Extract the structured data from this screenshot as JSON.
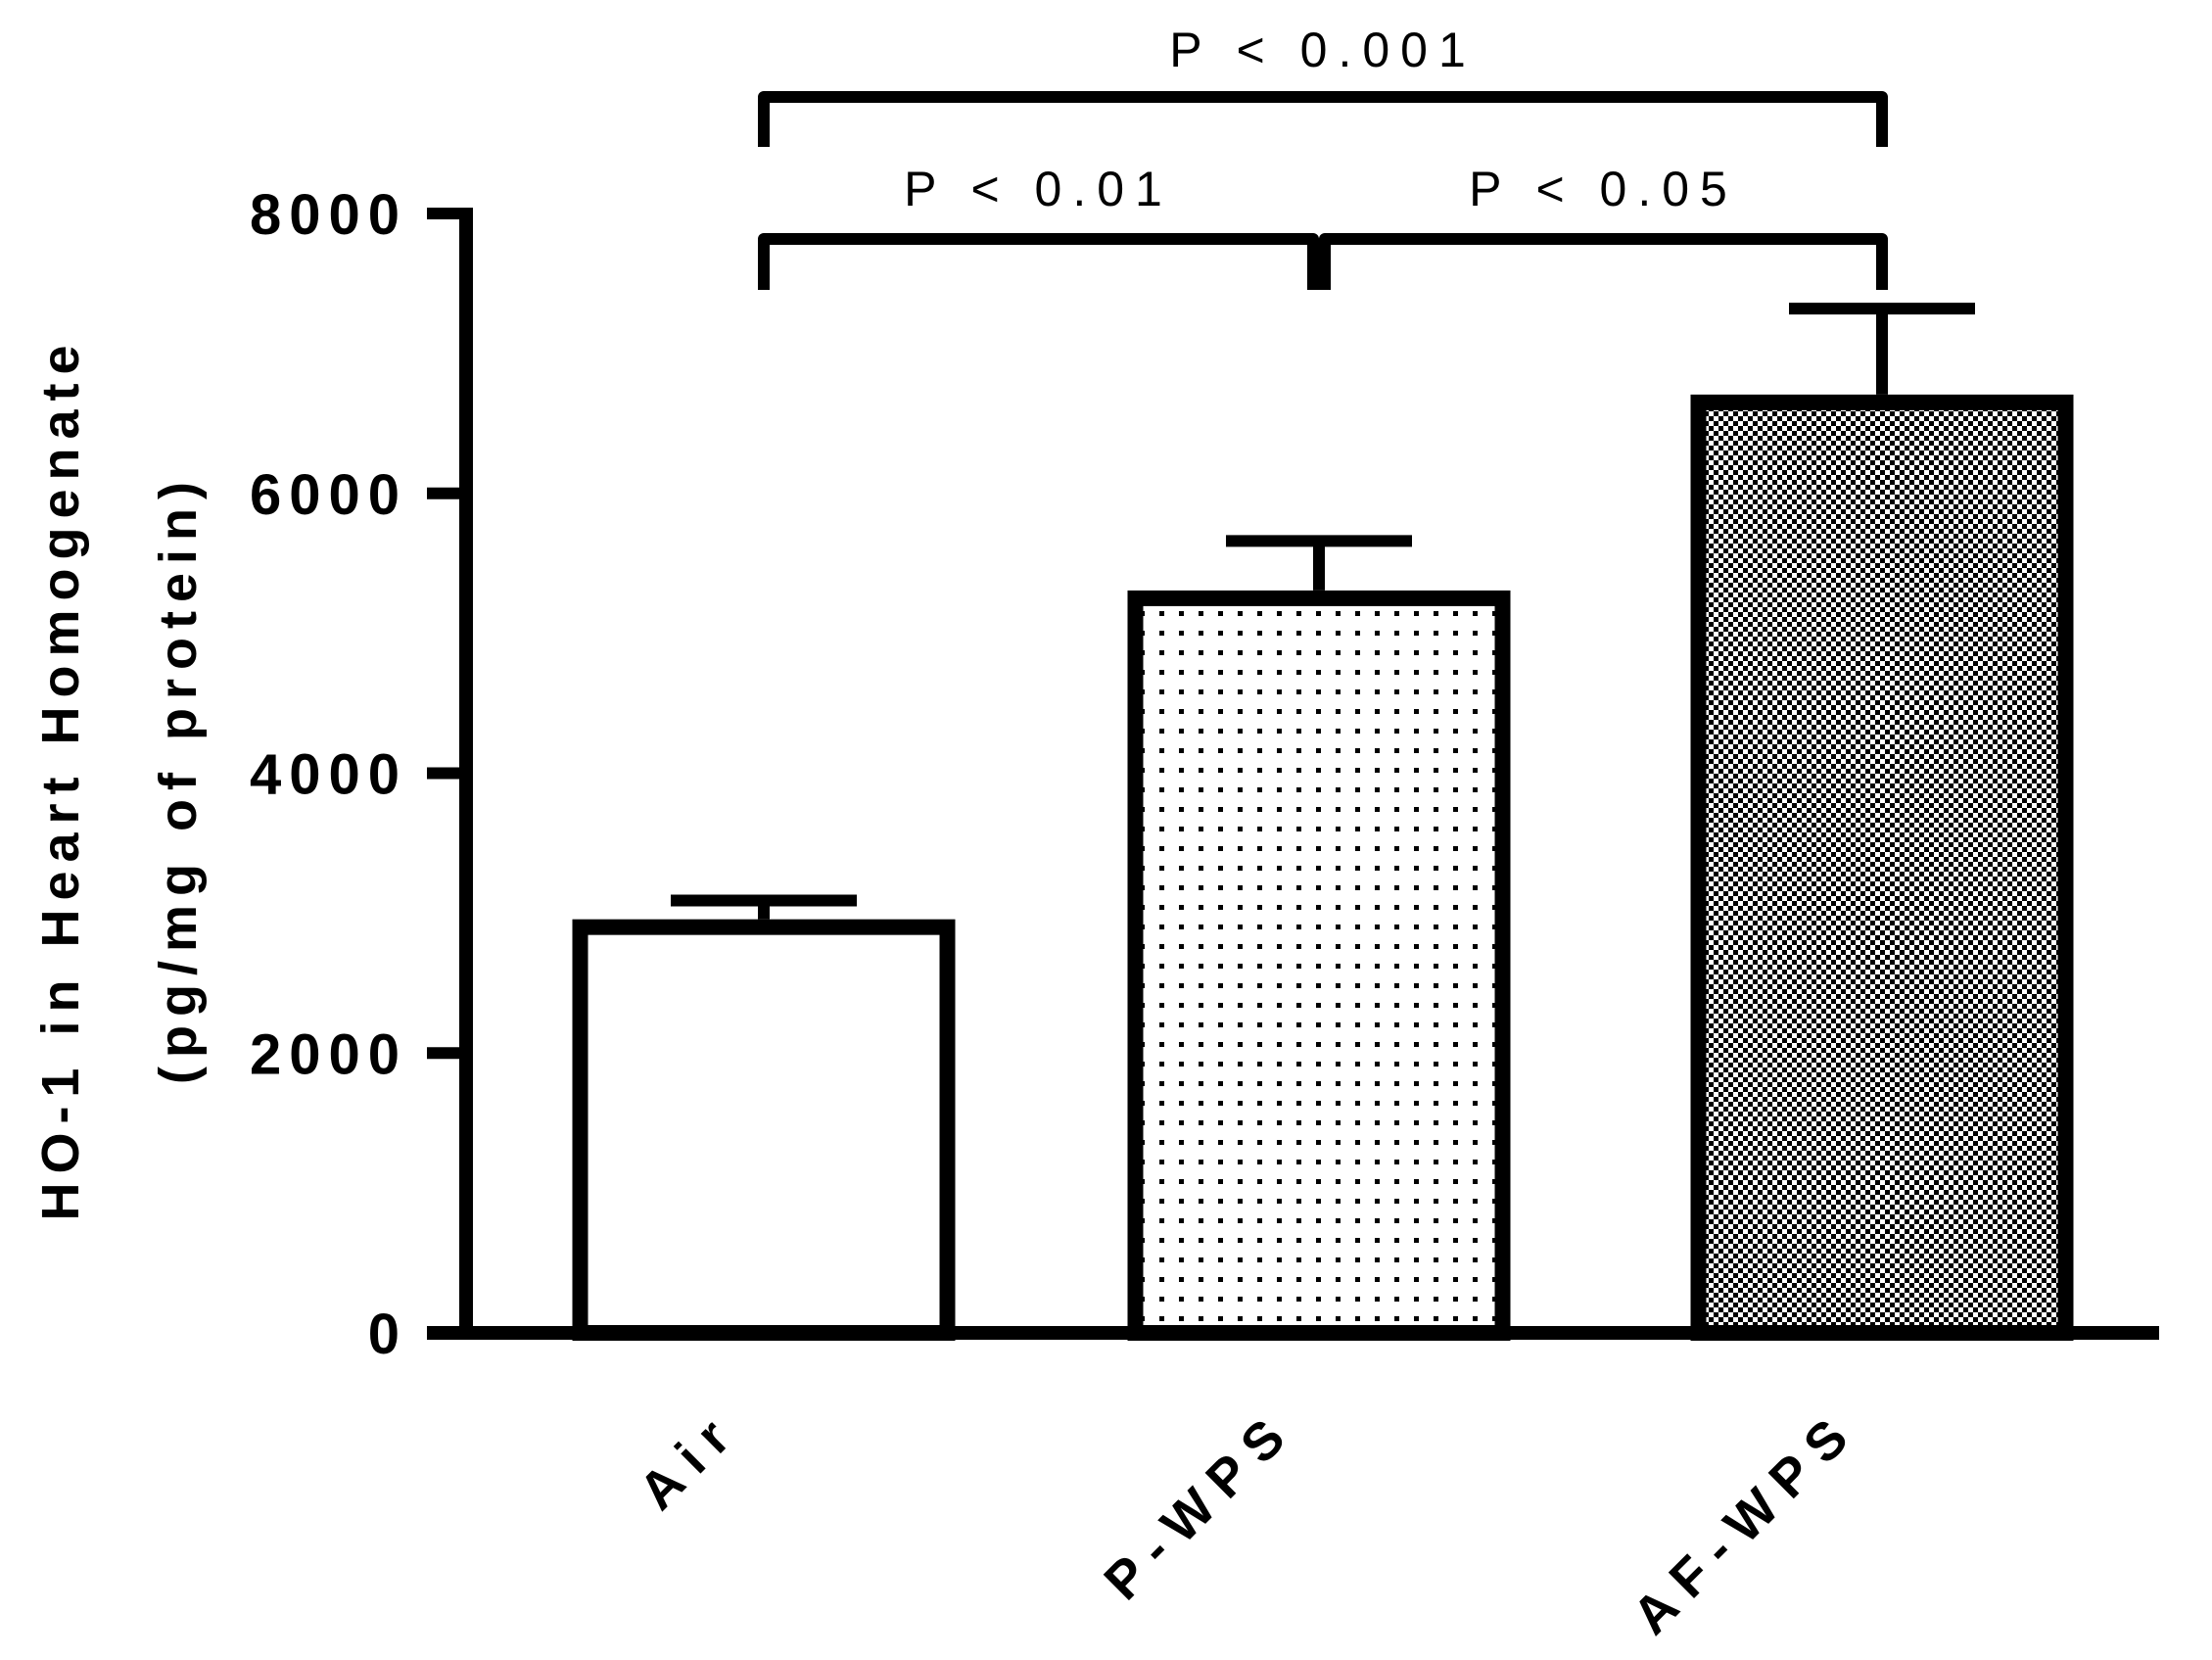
{
  "chart_data": {
    "type": "bar",
    "title": "",
    "xlabel": "",
    "ylabel": [
      "HO-1 in Heart Homogenate",
      "(pg/mg of protein)"
    ],
    "ylim": [
      0,
      8000
    ],
    "yticks": [
      0,
      2000,
      4000,
      6000,
      8000
    ],
    "ytick_labels": [
      "0",
      "2000",
      "4000",
      "6000",
      "8000"
    ],
    "categories": [
      "Air",
      "P-WPS",
      "AF-WPS"
    ],
    "values": [
      2900,
      5250,
      6650
    ],
    "errors": [
      190,
      410,
      670
    ],
    "patterns": [
      "none",
      "dots",
      "checker"
    ],
    "grid": false,
    "legend": "none",
    "significance": [
      {
        "from": 0,
        "to": 1,
        "label": "P < 0.01",
        "level": 1
      },
      {
        "from": 1,
        "to": 2,
        "label": "P < 0.05",
        "level": 1
      },
      {
        "from": 0,
        "to": 2,
        "label": "P < 0.001",
        "level": 2
      }
    ],
    "colors": {
      "stroke": "#000000",
      "fill": "#ffffff"
    }
  }
}
